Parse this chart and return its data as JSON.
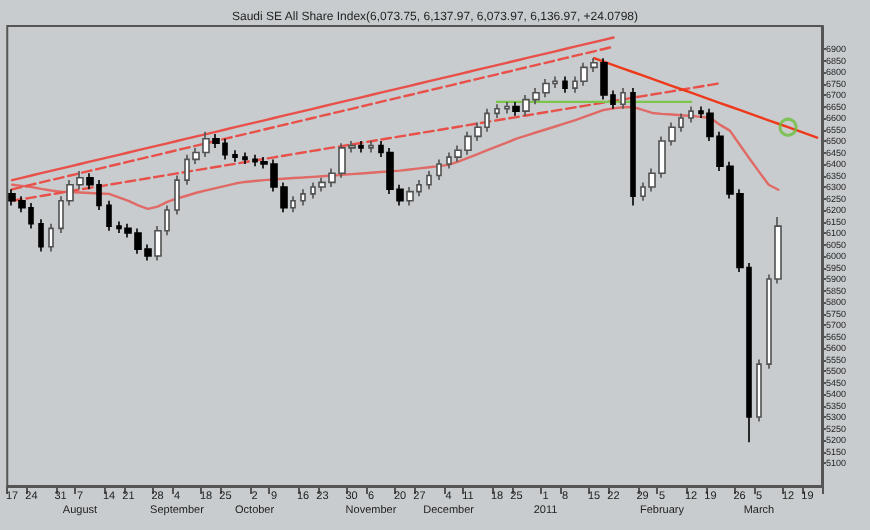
{
  "chart_data": {
    "type": "candlestick",
    "title": "Saudi SE All Share Index(6,073.75, 6,137.97, 6,073.97, 6,136.97, +24.0798)",
    "categories": [
      "17",
      null,
      "24",
      null,
      null,
      "31",
      null,
      "7\nAugust",
      null,
      null,
      "14",
      null,
      "21",
      null,
      null,
      "28",
      null,
      "4\nSeptember",
      null,
      null,
      "18",
      null,
      "25",
      null,
      null,
      "2\nOctober",
      null,
      "9",
      null,
      null,
      "16",
      null,
      "23",
      null,
      null,
      "30",
      null,
      "6\nNovember",
      null,
      null,
      "20",
      null,
      "27",
      null,
      null,
      "4\nDecember",
      null,
      "11",
      null,
      null,
      "18",
      null,
      "25",
      null,
      null,
      "1\n2011",
      null,
      "8",
      null,
      null,
      "15",
      null,
      "22",
      null,
      null,
      "29",
      null,
      "5\nFebruary",
      null,
      null,
      "12",
      null,
      "19",
      null,
      null,
      "26",
      null,
      "5\nMarch",
      null,
      null,
      "12",
      null,
      "19",
      null
    ],
    "ohlc": [
      [
        6270,
        6290,
        6220,
        6240
      ],
      [
        6240,
        6260,
        6190,
        6210
      ],
      [
        6210,
        6230,
        6120,
        6140
      ],
      [
        6140,
        6160,
        6020,
        6040
      ],
      [
        6040,
        6140,
        6020,
        6120
      ],
      [
        6120,
        6260,
        6100,
        6240
      ],
      [
        6240,
        6330,
        6220,
        6310
      ],
      [
        6310,
        6370,
        6290,
        6340
      ],
      [
        6340,
        6360,
        6290,
        6310
      ],
      [
        6310,
        6330,
        6200,
        6220
      ],
      [
        6220,
        6240,
        6110,
        6130
      ],
      [
        6130,
        6150,
        6100,
        6120
      ],
      [
        6120,
        6140,
        6080,
        6100
      ],
      [
        6100,
        6120,
        6010,
        6030
      ],
      [
        6030,
        6050,
        5980,
        6000
      ],
      [
        6000,
        6130,
        5980,
        6110
      ],
      [
        6110,
        6220,
        6090,
        6200
      ],
      [
        6200,
        6350,
        6180,
        6330
      ],
      [
        6330,
        6440,
        6310,
        6420
      ],
      [
        6420,
        6470,
        6400,
        6450
      ],
      [
        6450,
        6540,
        6430,
        6510
      ],
      [
        6510,
        6530,
        6470,
        6490
      ],
      [
        6490,
        6510,
        6420,
        6440
      ],
      [
        6440,
        6460,
        6410,
        6430
      ],
      [
        6430,
        6450,
        6400,
        6420
      ],
      [
        6420,
        6440,
        6390,
        6410
      ],
      [
        6410,
        6430,
        6380,
        6400
      ],
      [
        6400,
        6420,
        6280,
        6300
      ],
      [
        6300,
        6320,
        6190,
        6210
      ],
      [
        6210,
        6260,
        6190,
        6240
      ],
      [
        6240,
        6290,
        6220,
        6270
      ],
      [
        6270,
        6320,
        6250,
        6300
      ],
      [
        6300,
        6340,
        6280,
        6320
      ],
      [
        6320,
        6380,
        6300,
        6360
      ],
      [
        6360,
        6490,
        6340,
        6470
      ],
      [
        6470,
        6500,
        6450,
        6480
      ],
      [
        6480,
        6500,
        6450,
        6470
      ],
      [
        6470,
        6500,
        6450,
        6480
      ],
      [
        6480,
        6500,
        6430,
        6450
      ],
      [
        6450,
        6470,
        6270,
        6290
      ],
      [
        6290,
        6310,
        6220,
        6240
      ],
      [
        6240,
        6300,
        6220,
        6280
      ],
      [
        6280,
        6330,
        6260,
        6310
      ],
      [
        6310,
        6370,
        6290,
        6350
      ],
      [
        6350,
        6420,
        6330,
        6400
      ],
      [
        6400,
        6450,
        6380,
        6430
      ],
      [
        6430,
        6480,
        6410,
        6460
      ],
      [
        6460,
        6540,
        6440,
        6520
      ],
      [
        6520,
        6580,
        6500,
        6560
      ],
      [
        6560,
        6640,
        6540,
        6620
      ],
      [
        6620,
        6660,
        6600,
        6640
      ],
      [
        6640,
        6670,
        6620,
        6650
      ],
      [
        6650,
        6670,
        6610,
        6630
      ],
      [
        6630,
        6700,
        6610,
        6680
      ],
      [
        6680,
        6730,
        6660,
        6710
      ],
      [
        6710,
        6770,
        6690,
        6750
      ],
      [
        6750,
        6780,
        6730,
        6760
      ],
      [
        6760,
        6780,
        6710,
        6730
      ],
      [
        6730,
        6780,
        6710,
        6760
      ],
      [
        6760,
        6840,
        6740,
        6820
      ],
      [
        6820,
        6860,
        6800,
        6840
      ],
      [
        6840,
        6860,
        6680,
        6700
      ],
      [
        6700,
        6720,
        6640,
        6660
      ],
      [
        6660,
        6730,
        6640,
        6710
      ],
      [
        6710,
        6730,
        6220,
        6260
      ],
      [
        6260,
        6320,
        6240,
        6300
      ],
      [
        6300,
        6380,
        6280,
        6360
      ],
      [
        6360,
        6520,
        6340,
        6500
      ],
      [
        6500,
        6580,
        6480,
        6560
      ],
      [
        6560,
        6620,
        6540,
        6600
      ],
      [
        6600,
        6650,
        6580,
        6630
      ],
      [
        6630,
        6650,
        6600,
        6620
      ],
      [
        6620,
        6640,
        6500,
        6520
      ],
      [
        6520,
        6540,
        6370,
        6390
      ],
      [
        6390,
        6410,
        6250,
        6270
      ],
      [
        6270,
        6290,
        5930,
        5950
      ],
      [
        5950,
        5970,
        5190,
        5300
      ],
      [
        5300,
        5550,
        5280,
        5530
      ],
      [
        5530,
        5920,
        5510,
        5900
      ],
      [
        5900,
        6170,
        5880,
        6130
      ],
      null,
      null,
      null,
      null
    ],
    "ylim": [
      5000,
      7000
    ],
    "yticks": [
      5100,
      5150,
      5200,
      5250,
      5300,
      5350,
      5400,
      5450,
      5500,
      5550,
      5600,
      5650,
      5700,
      5750,
      5800,
      5850,
      5900,
      5950,
      6000,
      6050,
      6100,
      6150,
      6200,
      6250,
      6300,
      6350,
      6400,
      6450,
      6500,
      6550,
      6600,
      6650,
      6700,
      6750,
      6800,
      6850,
      6900
    ],
    "grid": false,
    "series": [
      {
        "type": "line",
        "color": "#e06a66",
        "line_style": "solid",
        "marker": "none",
        "values": [
          6310,
          6305,
          6300,
          6292,
          6285,
          6280,
          6278,
          6276,
          6274,
          6272,
          6270,
          6255,
          6240,
          6220,
          6205,
          6215,
          6235,
          6250,
          6262,
          6275,
          6285,
          6295,
          6305,
          6315,
          6322,
          6326,
          6330,
          6333,
          6336,
          6339,
          6341,
          6344,
          6347,
          6350,
          6353,
          6356,
          6359,
          6362,
          6365,
          6368,
          6371,
          6376,
          6381,
          6386,
          6391,
          6396,
          6410,
          6427,
          6443,
          6460,
          6477,
          6493,
          6510,
          6523,
          6537,
          6550,
          6563,
          6577,
          6590,
          6605,
          6620,
          6635,
          6642,
          6647,
          6648,
          6635,
          6622,
          6618,
          6615,
          6612,
          6609,
          6605,
          6600,
          6570,
          6545,
          6485,
          6425,
          6367,
          6310,
          6288,
          null,
          null,
          null,
          null
        ]
      },
      {
        "type": "line",
        "color": "#e8504a",
        "line_style": "solid",
        "marker": "none",
        "values": [
          6330,
          6340,
          6350,
          6360,
          6370,
          6380,
          6390,
          6400,
          6410,
          6420,
          6430,
          6440,
          6450,
          6460,
          6470,
          6480,
          6490,
          6500,
          6510,
          6520,
          6530,
          6540,
          6550,
          6560,
          6570,
          6580,
          6590,
          6600,
          6610,
          6620,
          6630,
          6640,
          6650,
          6660,
          6670,
          6680,
          6690,
          6700,
          6710,
          6720,
          6730,
          6740,
          6750,
          6760,
          6770,
          6780,
          6790,
          6800,
          6810,
          6820,
          6830,
          6840,
          6850,
          6860,
          6870,
          6880,
          6890,
          6900,
          6910,
          6920,
          6930,
          6940,
          6950,
          null,
          null,
          null,
          null,
          null,
          null,
          null,
          null,
          null,
          null,
          null,
          null,
          null,
          null,
          null,
          null,
          null,
          null,
          null,
          null,
          null
        ]
      },
      {
        "type": "line",
        "color": "#e8504a",
        "line_style": "dashed",
        "marker": "none",
        "values": [
          6290,
          6300,
          6310,
          6320,
          6330,
          6340,
          6350,
          6360,
          6370,
          6380,
          6390,
          6400,
          6410,
          6420,
          6430,
          6440,
          6450,
          6460,
          6470,
          6480,
          6490,
          6500,
          6510,
          6520,
          6530,
          6540,
          6550,
          6560,
          6570,
          6580,
          6590,
          6600,
          6610,
          6620,
          6630,
          6640,
          6650,
          6660,
          6670,
          6680,
          6690,
          6700,
          6710,
          6720,
          6730,
          6740,
          6750,
          6760,
          6770,
          6780,
          6790,
          6800,
          6810,
          6820,
          6830,
          6840,
          6850,
          6860,
          6870,
          6880,
          6890,
          6900,
          6910,
          null,
          null,
          null,
          null,
          null,
          null,
          null,
          null,
          null,
          null,
          null,
          null,
          null,
          null,
          null,
          null,
          null,
          null,
          null,
          null,
          null
        ]
      },
      {
        "type": "line",
        "color": "#e8504a",
        "line_style": "dashed",
        "marker": "none",
        "values": [
          6240,
          6247,
          6254,
          6261,
          6268,
          6275,
          6282,
          6289,
          6296,
          6303,
          6310,
          6317,
          6324,
          6331,
          6338,
          6345,
          6352,
          6359,
          6366,
          6373,
          6380,
          6387,
          6394,
          6401,
          6408,
          6415,
          6422,
          6429,
          6436,
          6443,
          6450,
          6457,
          6464,
          6471,
          6478,
          6485,
          6492,
          6499,
          6506,
          6513,
          6520,
          6527,
          6534,
          6541,
          6548,
          6555,
          6562,
          6569,
          6576,
          6583,
          6590,
          6597,
          6604,
          6611,
          6618,
          6625,
          6632,
          6639,
          6646,
          6653,
          6660,
          6667,
          6674,
          6681,
          6688,
          6695,
          6702,
          6709,
          6716,
          6723,
          6730,
          6737,
          6744,
          6751,
          null,
          null,
          null,
          null,
          null,
          null,
          null,
          null,
          null,
          null
        ]
      },
      {
        "type": "line",
        "color": "#7cc44c",
        "line_style": "solid",
        "marker": "none",
        "values": [
          null,
          null,
          null,
          null,
          null,
          null,
          null,
          null,
          null,
          null,
          null,
          null,
          null,
          null,
          null,
          null,
          null,
          null,
          null,
          null,
          null,
          null,
          null,
          null,
          null,
          null,
          null,
          null,
          null,
          null,
          null,
          null,
          null,
          null,
          null,
          null,
          null,
          null,
          null,
          null,
          null,
          null,
          null,
          null,
          null,
          null,
          null,
          null,
          null,
          null,
          6670,
          6670,
          6670,
          6670,
          6670,
          6670,
          6670,
          6670,
          6670,
          6670,
          6670,
          6670,
          6670,
          6670,
          6670,
          6670,
          6670,
          6670,
          6670,
          6670,
          6670,
          null,
          null,
          null,
          null,
          null,
          null,
          null,
          null,
          null,
          null,
          null,
          null,
          null
        ]
      },
      {
        "type": "line",
        "color": "#ee3a1c",
        "line_style": "solid",
        "marker": "none",
        "values": [
          null,
          null,
          null,
          null,
          null,
          null,
          null,
          null,
          null,
          null,
          null,
          null,
          null,
          null,
          null,
          null,
          null,
          null,
          null,
          null,
          null,
          null,
          null,
          null,
          null,
          null,
          null,
          null,
          null,
          null,
          null,
          null,
          null,
          null,
          null,
          null,
          null,
          null,
          null,
          null,
          null,
          null,
          null,
          null,
          null,
          null,
          null,
          null,
          null,
          null,
          null,
          null,
          null,
          null,
          null,
          null,
          null,
          null,
          null,
          null,
          6860,
          6845,
          6830,
          6815,
          6800,
          6785,
          6770,
          6755,
          6740,
          6725,
          6710,
          6695,
          6680,
          6665,
          6650,
          6635,
          6620,
          6605,
          6590,
          6575,
          6560,
          6545,
          6530,
          6515
        ]
      },
      {
        "type": "scatter",
        "color": "#6cbf3c",
        "marker": "circle",
        "values": [
          null,
          null,
          null,
          null,
          null,
          null,
          null,
          null,
          null,
          null,
          null,
          null,
          null,
          null,
          null,
          null,
          null,
          null,
          null,
          null,
          null,
          null,
          null,
          null,
          null,
          null,
          null,
          null,
          null,
          null,
          null,
          null,
          null,
          null,
          null,
          null,
          null,
          null,
          null,
          null,
          null,
          null,
          null,
          null,
          null,
          null,
          null,
          null,
          null,
          null,
          null,
          null,
          null,
          null,
          null,
          null,
          null,
          null,
          null,
          null,
          null,
          null,
          null,
          null,
          null,
          null,
          null,
          null,
          null,
          null,
          null,
          null,
          null,
          null,
          null,
          null,
          null,
          null,
          null,
          null,
          6560,
          null,
          null,
          null
        ]
      }
    ]
  }
}
